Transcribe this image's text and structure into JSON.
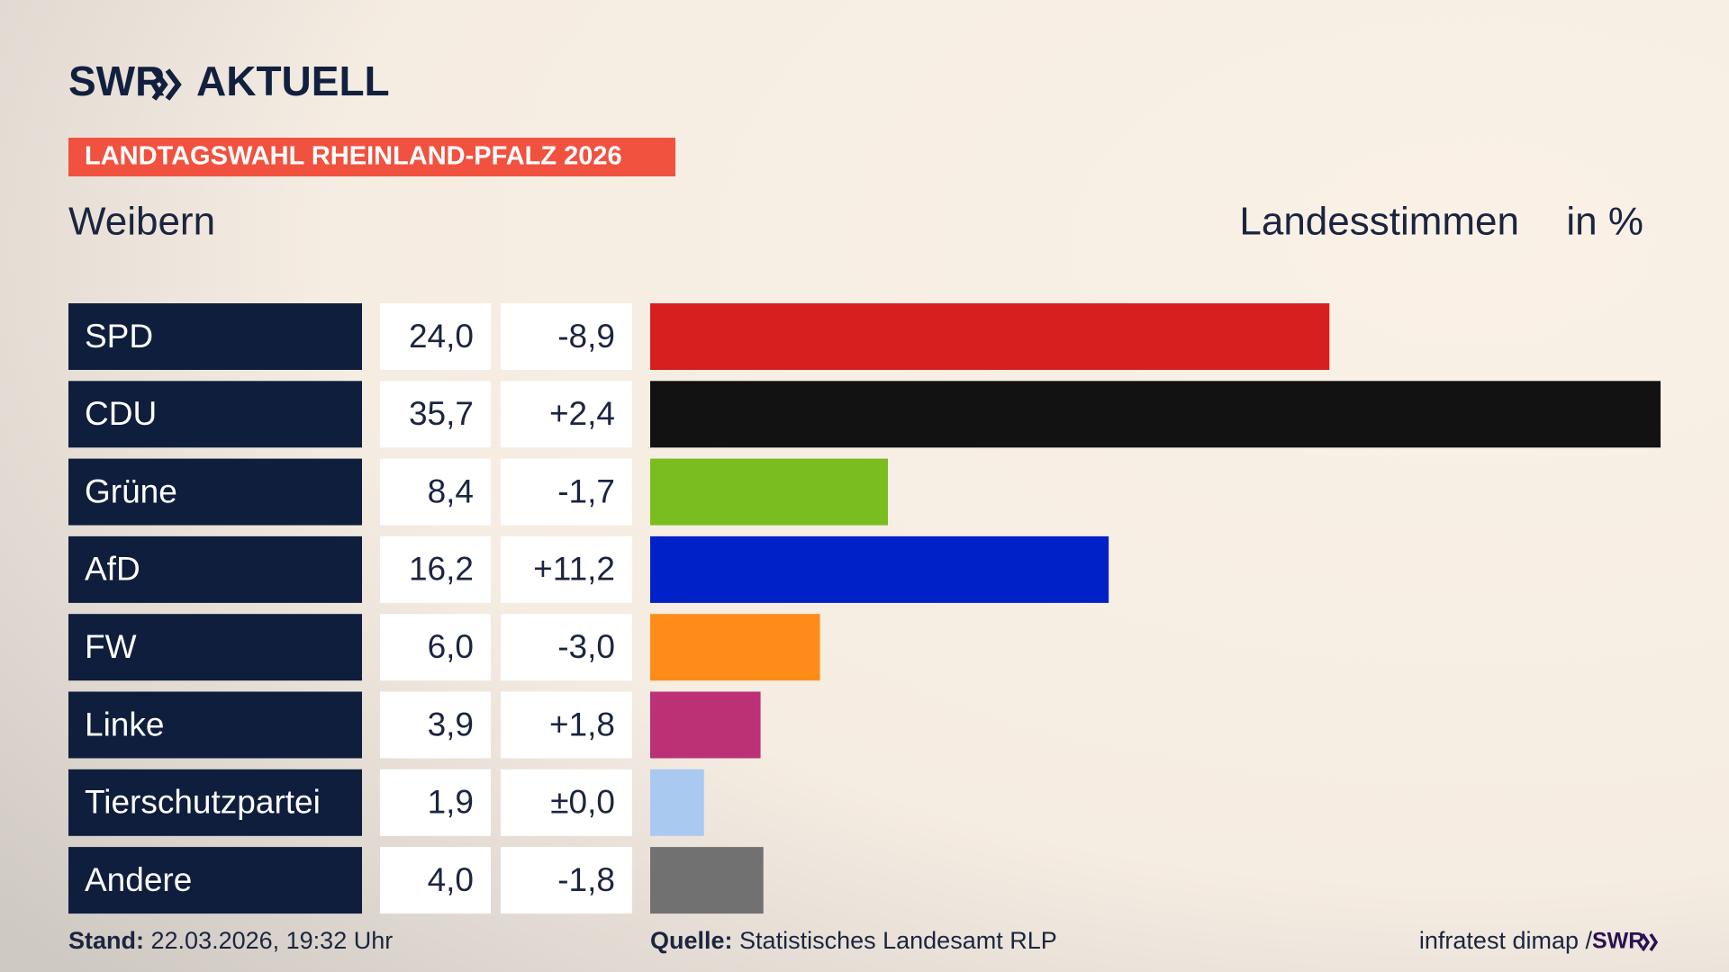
{
  "header": {
    "brand": "SWR",
    "brand_title": "AKTUELL",
    "badge": "LANDTAGSWAHL RHEINLAND-PFALZ 2026",
    "location": "Weibern",
    "measure": "Landesstimmen",
    "unit": "in %"
  },
  "chart_data": {
    "type": "bar",
    "categories": [
      "SPD",
      "CDU",
      "Grüne",
      "AfD",
      "FW",
      "Linke",
      "Tierschutzpartei",
      "Andere"
    ],
    "values": [
      24.0,
      35.7,
      8.4,
      16.2,
      6.0,
      3.9,
      1.9,
      4.0
    ],
    "value_labels": [
      "24,0",
      "35,7",
      "8,4",
      "16,2",
      "6,0",
      "3,9",
      "1,9",
      "4,0"
    ],
    "changes": [
      "-8,9",
      "+2,4",
      "-1,7",
      "+11,2",
      "-3,0",
      "+1,8",
      "±0,0",
      "-1,8"
    ],
    "colors": [
      "#d71f1f",
      "#121212",
      "#7abd1e",
      "#0021c7",
      "#ff8c19",
      "#bc3076",
      "#aac9f0",
      "#717171"
    ]
  },
  "footer": {
    "stand_label": "Stand:",
    "stand": "22.03.2026, 19:32 Uhr",
    "source_label": "Quelle:",
    "source": "Statistisches Landesamt RLP",
    "credit": "infratest dimap /",
    "credit_brand": "SWR"
  }
}
